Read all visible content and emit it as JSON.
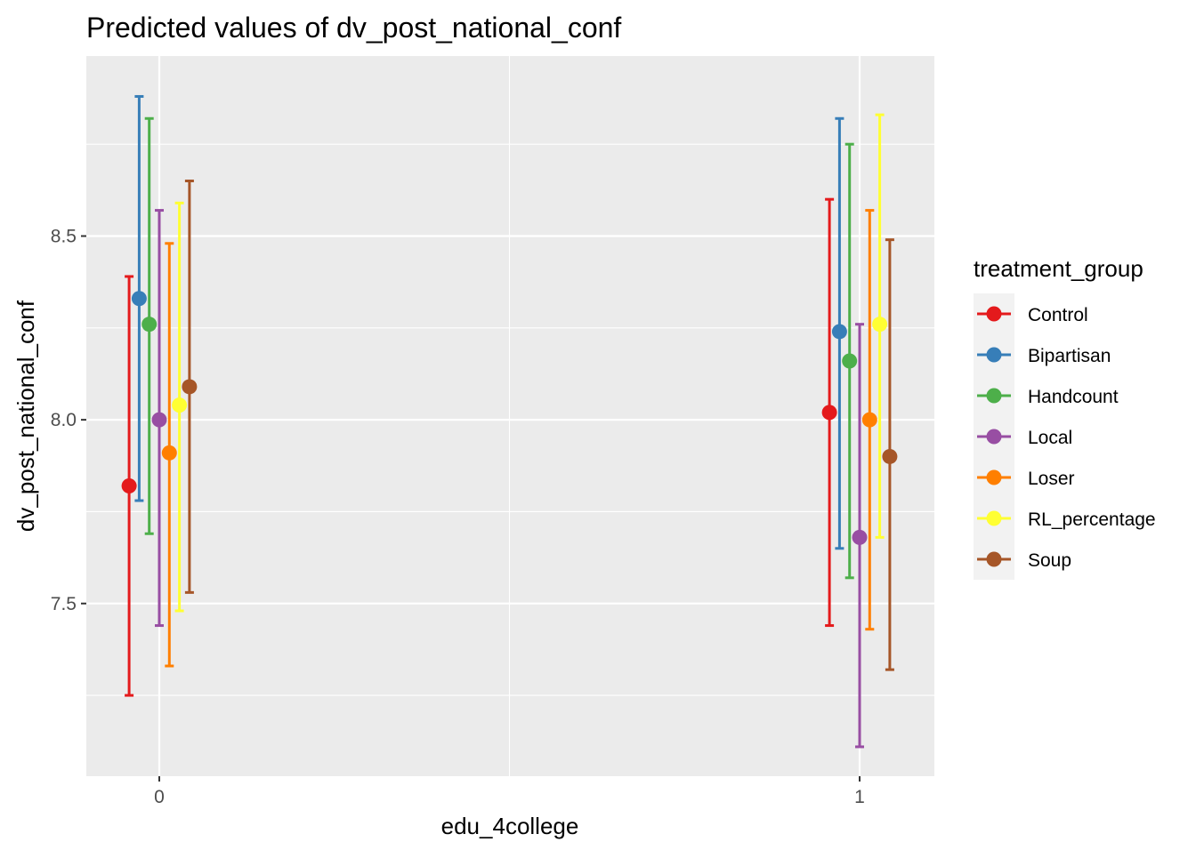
{
  "chart_data": {
    "type": "scatter",
    "subtype": "point-with-errorbars (dodged)",
    "title": "Predicted values of dv_post_national_conf",
    "xlabel": "edu_4college",
    "ylabel": "dv_post_national_conf",
    "categories": [
      "0",
      "1"
    ],
    "y_ticks": [
      "7.5",
      "8.0",
      "8.5"
    ],
    "ylim": [
      7.03,
      8.99
    ],
    "grid": true,
    "legend": {
      "title": "treatment_group",
      "position": "right"
    },
    "series": [
      {
        "name": "Control",
        "color": "#E41A1C",
        "points": [
          {
            "x": "0",
            "y": 7.82,
            "lo": 7.25,
            "hi": 8.39
          },
          {
            "x": "1",
            "y": 8.02,
            "lo": 7.44,
            "hi": 8.6
          }
        ]
      },
      {
        "name": "Bipartisan",
        "color": "#377EB8",
        "points": [
          {
            "x": "0",
            "y": 8.33,
            "lo": 7.78,
            "hi": 8.88
          },
          {
            "x": "1",
            "y": 8.24,
            "lo": 7.65,
            "hi": 8.82
          }
        ]
      },
      {
        "name": "Handcount",
        "color": "#4DAF4A",
        "points": [
          {
            "x": "0",
            "y": 8.26,
            "lo": 7.69,
            "hi": 8.82
          },
          {
            "x": "1",
            "y": 8.16,
            "lo": 7.57,
            "hi": 8.75
          }
        ]
      },
      {
        "name": "Local",
        "color": "#984EA3",
        "points": [
          {
            "x": "0",
            "y": 8.0,
            "lo": 7.44,
            "hi": 8.57
          },
          {
            "x": "1",
            "y": 7.68,
            "lo": 7.11,
            "hi": 8.26
          }
        ]
      },
      {
        "name": "Loser",
        "color": "#FF7F00",
        "points": [
          {
            "x": "0",
            "y": 7.91,
            "lo": 7.33,
            "hi": 8.48
          },
          {
            "x": "1",
            "y": 8.0,
            "lo": 7.43,
            "hi": 8.57
          }
        ]
      },
      {
        "name": "RL_percentage",
        "color": "#FFFF33",
        "points": [
          {
            "x": "0",
            "y": 8.04,
            "lo": 7.48,
            "hi": 8.59
          },
          {
            "x": "1",
            "y": 8.26,
            "lo": 7.68,
            "hi": 8.83
          }
        ]
      },
      {
        "name": "Soup",
        "color": "#A65628",
        "points": [
          {
            "x": "0",
            "y": 8.09,
            "lo": 7.53,
            "hi": 8.65
          },
          {
            "x": "1",
            "y": 7.9,
            "lo": 7.32,
            "hi": 8.49
          }
        ]
      }
    ]
  },
  "style": {
    "panel_background": "#EBEBEB",
    "grid_color": "#FFFFFF",
    "legend_key_background": "#F2F2F2",
    "text_color": "#000000",
    "tick_label_color": "#4D4D4D"
  }
}
